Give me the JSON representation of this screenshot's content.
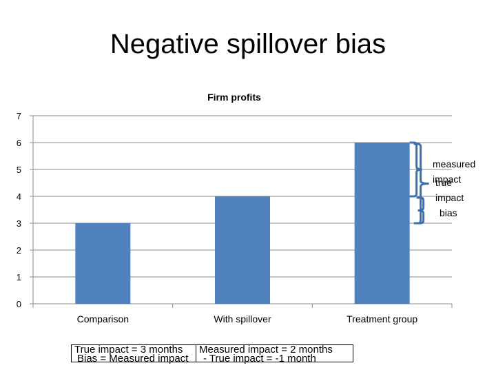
{
  "slide": {
    "title": "Negative spillover bias"
  },
  "chart_data": {
    "type": "bar",
    "title": "Firm profits",
    "categories": [
      "Comparison",
      "With spillover",
      "Treatment group"
    ],
    "values": [
      3,
      4,
      6
    ],
    "ylim": [
      0,
      7
    ],
    "yticks": [
      "0",
      "1",
      "2",
      "3",
      "4",
      "5",
      "6",
      "7"
    ],
    "grid": true,
    "bar_color": "#4f81bd",
    "brace_color": "#3a6fb0",
    "annotations": {
      "measured_impact": "measured impact",
      "true_impact": "true impact",
      "bias": "bias"
    }
  },
  "formulas": {
    "line1a": "True impact = 3 months",
    "line1b": "Measured impact = 2 months",
    "line2a": "Bias = Measured impact",
    "line2b": "- True impact = -1 month"
  }
}
